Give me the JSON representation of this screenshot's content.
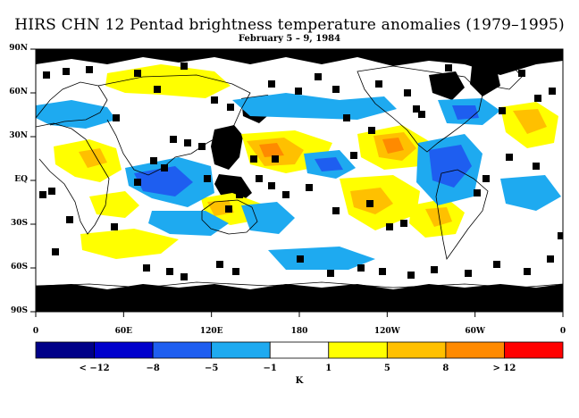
{
  "title": "HIRS CHN 12 Pentad brightness temperature anomalies (1979–1995)",
  "subtitle": "February 5 – 9, 1984",
  "lat_labels": [
    "90N",
    "60N",
    "30N",
    "EQ",
    "30S",
    "60S",
    "90S"
  ],
  "lon_labels": [
    "0",
    "60E",
    "120E",
    "180",
    "120W",
    "60W",
    "0"
  ],
  "colorbar": {
    "colors": [
      "#000088",
      "#0000cc",
      "#1e5ef0",
      "#1eaaf0",
      "#ffffff",
      "#ffff00",
      "#ffc000",
      "#ff8a00",
      "#ff0000"
    ],
    "labels": [
      "< −12",
      "−8",
      "−5",
      "−1",
      "1",
      "5",
      "8",
      "> 12"
    ],
    "unit": "K"
  },
  "map_colors": {
    "missing": "#000000",
    "cold": "#1eaaf0",
    "cold2": "#1e5ef0",
    "warm": "#ffff00",
    "warm2": "#ffc000",
    "warm3": "#ff8a00"
  }
}
